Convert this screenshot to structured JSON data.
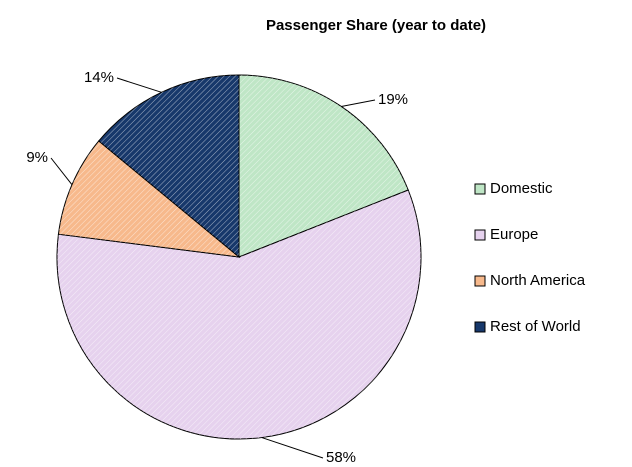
{
  "chart_data": {
    "type": "pie",
    "title": "Passenger Share (year to date)",
    "categories": [
      "Domestic",
      "Europe",
      "North America",
      "Rest of World"
    ],
    "values": [
      19,
      58,
      9,
      14
    ],
    "value_labels": [
      "19%",
      "58%",
      "9%",
      "14%"
    ],
    "colors": [
      "#bfe6c6",
      "#e6d2ee",
      "#f7b98c",
      "#17386b"
    ],
    "legend": "right"
  }
}
